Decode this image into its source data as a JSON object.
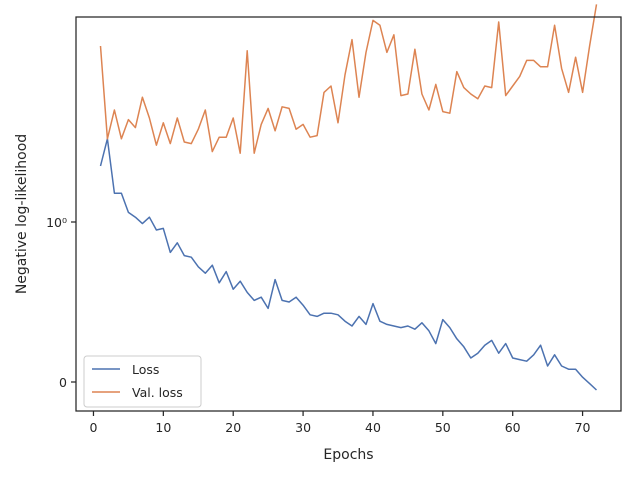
{
  "chart_data": {
    "type": "line",
    "title": "",
    "xlabel": "Epochs",
    "ylabel": "Negative log-likelihood",
    "xlim": [
      -2.5,
      75.5
    ],
    "xticks": [
      0,
      10,
      20,
      30,
      40,
      50,
      60,
      70
    ],
    "xtick_labels": [
      "0",
      "10",
      "20",
      "30",
      "40",
      "50",
      "60",
      "70"
    ],
    "yscale": "symlog",
    "yticks": [
      0,
      1
    ],
    "ytick_labels": [
      "0",
      "10⁰"
    ],
    "grid": false,
    "legend_position": "lower-left",
    "x": [
      1,
      2,
      3,
      4,
      5,
      6,
      7,
      8,
      9,
      10,
      11,
      12,
      13,
      14,
      15,
      16,
      17,
      18,
      19,
      20,
      21,
      22,
      23,
      24,
      25,
      26,
      27,
      28,
      29,
      30,
      31,
      32,
      33,
      34,
      35,
      36,
      37,
      38,
      39,
      40,
      41,
      42,
      43,
      44,
      45,
      46,
      47,
      48,
      49,
      50,
      51,
      52,
      53,
      54,
      55,
      56,
      57,
      58,
      59,
      60,
      61,
      62,
      63,
      64,
      65,
      66,
      67,
      68,
      69,
      70,
      71,
      72
    ],
    "series": [
      {
        "name": "Loss",
        "color": "#4c72b0",
        "values": [
          1.35,
          1.52,
          1.18,
          1.18,
          1.06,
          1.03,
          0.99,
          1.03,
          0.95,
          0.96,
          0.81,
          0.87,
          0.79,
          0.78,
          0.72,
          0.68,
          0.73,
          0.62,
          0.69,
          0.58,
          0.63,
          0.56,
          0.51,
          0.53,
          0.46,
          0.64,
          0.51,
          0.5,
          0.53,
          0.48,
          0.42,
          0.41,
          0.43,
          0.43,
          0.42,
          0.38,
          0.35,
          0.41,
          0.36,
          0.49,
          0.38,
          0.36,
          0.35,
          0.34,
          0.35,
          0.33,
          0.37,
          0.32,
          0.24,
          0.39,
          0.34,
          0.27,
          0.22,
          0.15,
          0.18,
          0.23,
          0.26,
          0.18,
          0.24,
          0.15,
          0.14,
          0.13,
          0.17,
          0.23,
          0.1,
          0.17,
          0.1,
          0.08,
          0.08,
          0.03,
          -0.01,
          -0.05
        ]
      },
      {
        "name": "Val. loss",
        "color": "#dd8452",
        "values": [
          2.1,
          1.52,
          1.7,
          1.52,
          1.64,
          1.59,
          1.78,
          1.65,
          1.48,
          1.62,
          1.49,
          1.65,
          1.5,
          1.49,
          1.58,
          1.7,
          1.44,
          1.53,
          1.53,
          1.65,
          1.43,
          2.07,
          1.43,
          1.61,
          1.71,
          1.57,
          1.72,
          1.71,
          1.58,
          1.61,
          1.53,
          1.54,
          1.81,
          1.85,
          1.62,
          1.92,
          2.14,
          1.78,
          2.06,
          2.26,
          2.23,
          2.06,
          2.17,
          1.79,
          1.8,
          2.08,
          1.8,
          1.7,
          1.86,
          1.69,
          1.68,
          1.94,
          1.84,
          1.8,
          1.77,
          1.85,
          1.84,
          2.25,
          1.79,
          1.85,
          1.91,
          2.01,
          2.01,
          1.97,
          1.97,
          2.23,
          1.96,
          1.81,
          2.03,
          1.81,
          2.1,
          2.36
        ]
      }
    ]
  }
}
